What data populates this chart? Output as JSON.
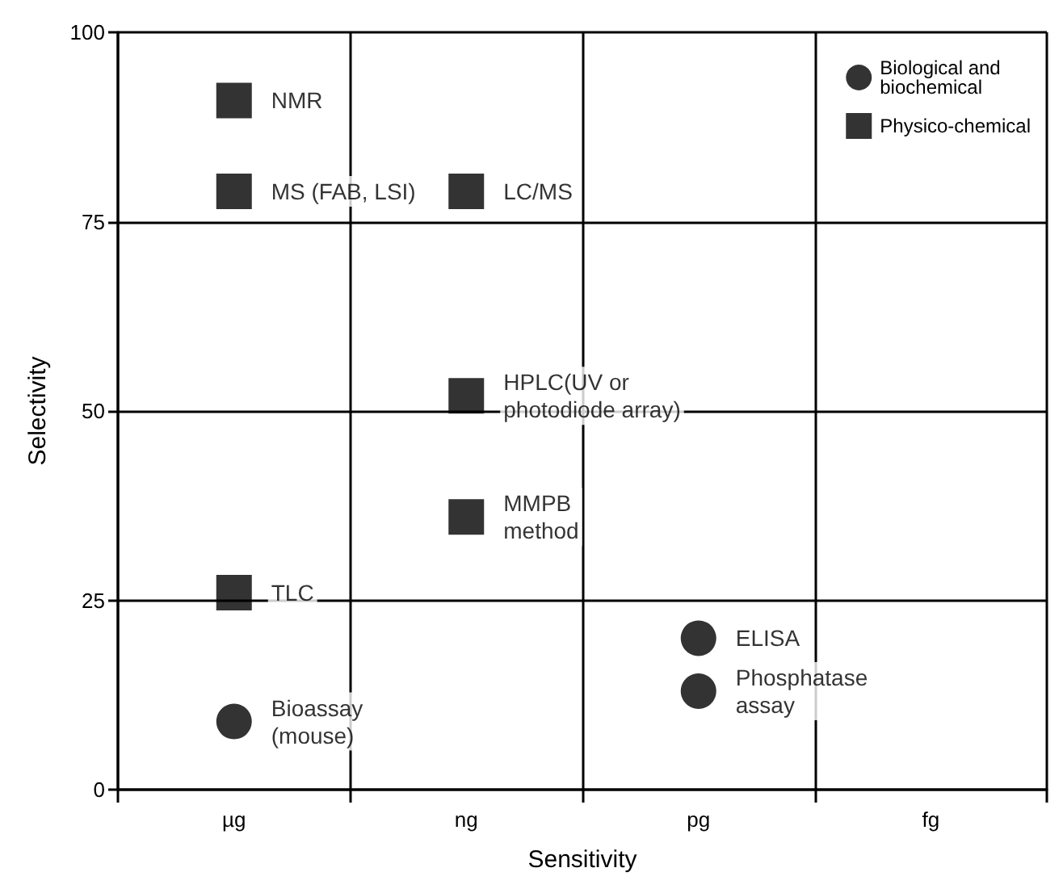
{
  "chart_data": {
    "type": "scatter",
    "xlabel": "Sensitivity",
    "ylabel": "Selectivity",
    "categories": [
      "µg",
      "ng",
      "pg",
      "fg"
    ],
    "ylim": [
      0,
      100
    ],
    "yticks": [
      0,
      25,
      50,
      75,
      100
    ],
    "grid": true,
    "legend": "top right",
    "series": [
      {
        "name": "Biological and biochemical",
        "color": "#000000",
        "marker": "circle",
        "x": [
          "µg",
          "pg",
          "pg"
        ],
        "values": [
          9,
          20,
          13
        ],
        "value_labels": [
          "Bioassay\n(mouse)",
          "ELISA",
          "Phosphatase\nassay"
        ]
      },
      {
        "name": "Physico-chemical",
        "color": "#000000",
        "marker": "square",
        "x": [
          "µg",
          "µg",
          "ng",
          "ng",
          "ng",
          "µg"
        ],
        "values": [
          91,
          79,
          79,
          52,
          36,
          26
        ],
        "value_labels": [
          "NMR",
          "MS (FAB, LSI)",
          "LC/MS",
          "HPLC(UV or\nphotodiode array)",
          "MMPB\nmethod",
          "TLC"
        ]
      }
    ]
  }
}
